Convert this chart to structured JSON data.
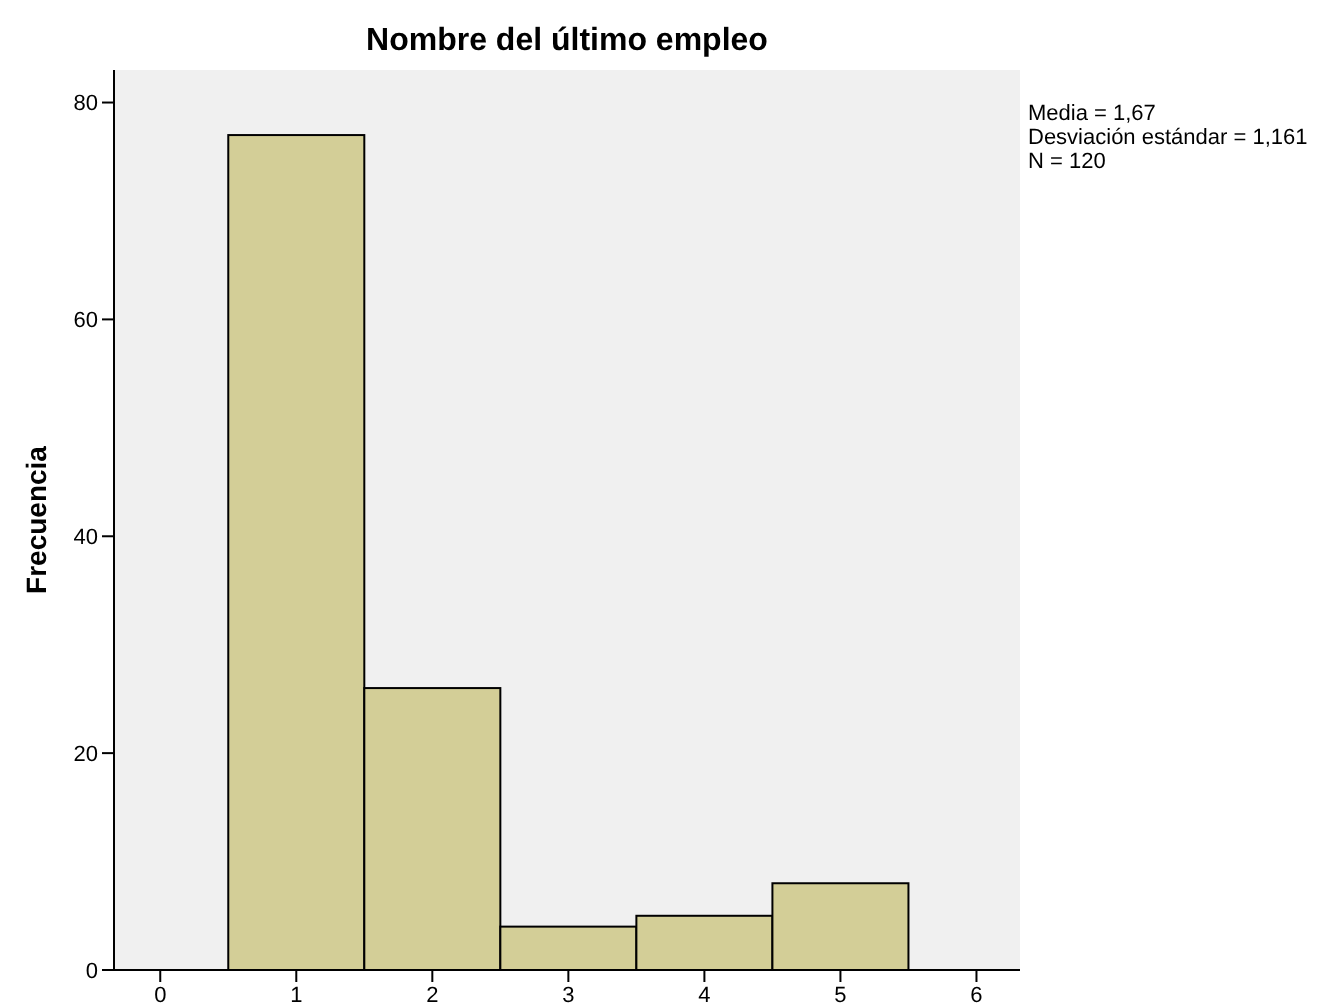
{
  "chart_data": {
    "type": "histogram",
    "title": "Nombre del último empleo",
    "ylabel": "Frecuencia",
    "bins": [
      0.5,
      1.5,
      2.5,
      3.5,
      4.5,
      5.5
    ],
    "values": [
      77,
      26,
      4,
      5,
      8
    ],
    "color": "#d3ce97",
    "xlim": [
      -0.34,
      6.32
    ],
    "xticks": [
      0,
      1,
      2,
      3,
      4,
      5,
      6
    ],
    "ylim": [
      0,
      83
    ],
    "yticks": [
      0,
      20,
      40,
      60,
      80
    ],
    "annotations": [
      "Media = 1,67",
      "Desviación estándar = 1,161",
      "N = 120"
    ]
  }
}
